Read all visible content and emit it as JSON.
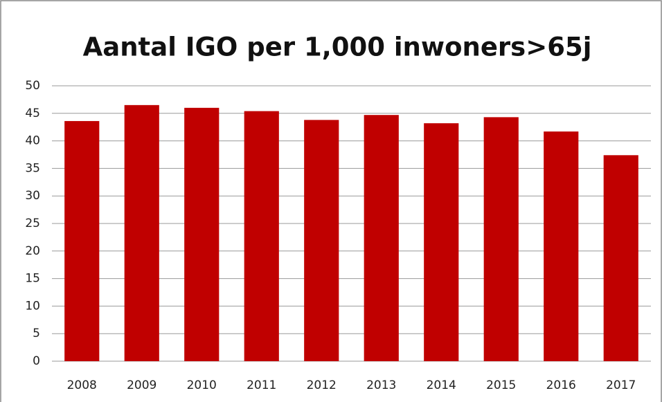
{
  "chart_data": {
    "type": "bar",
    "title": "Aantal IGO per 1,000 inwoners>65j",
    "categories": [
      "2008",
      "2009",
      "2010",
      "2011",
      "2012",
      "2013",
      "2014",
      "2015",
      "2016",
      "2017"
    ],
    "values": [
      43.6,
      46.5,
      46.0,
      45.4,
      43.8,
      44.7,
      43.2,
      44.3,
      41.7,
      37.4
    ],
    "color": "#c00000",
    "ylim": [
      0,
      50
    ],
    "yticks": [
      0,
      5,
      10,
      15,
      20,
      25,
      30,
      35,
      40,
      45,
      50
    ],
    "grid": true
  }
}
